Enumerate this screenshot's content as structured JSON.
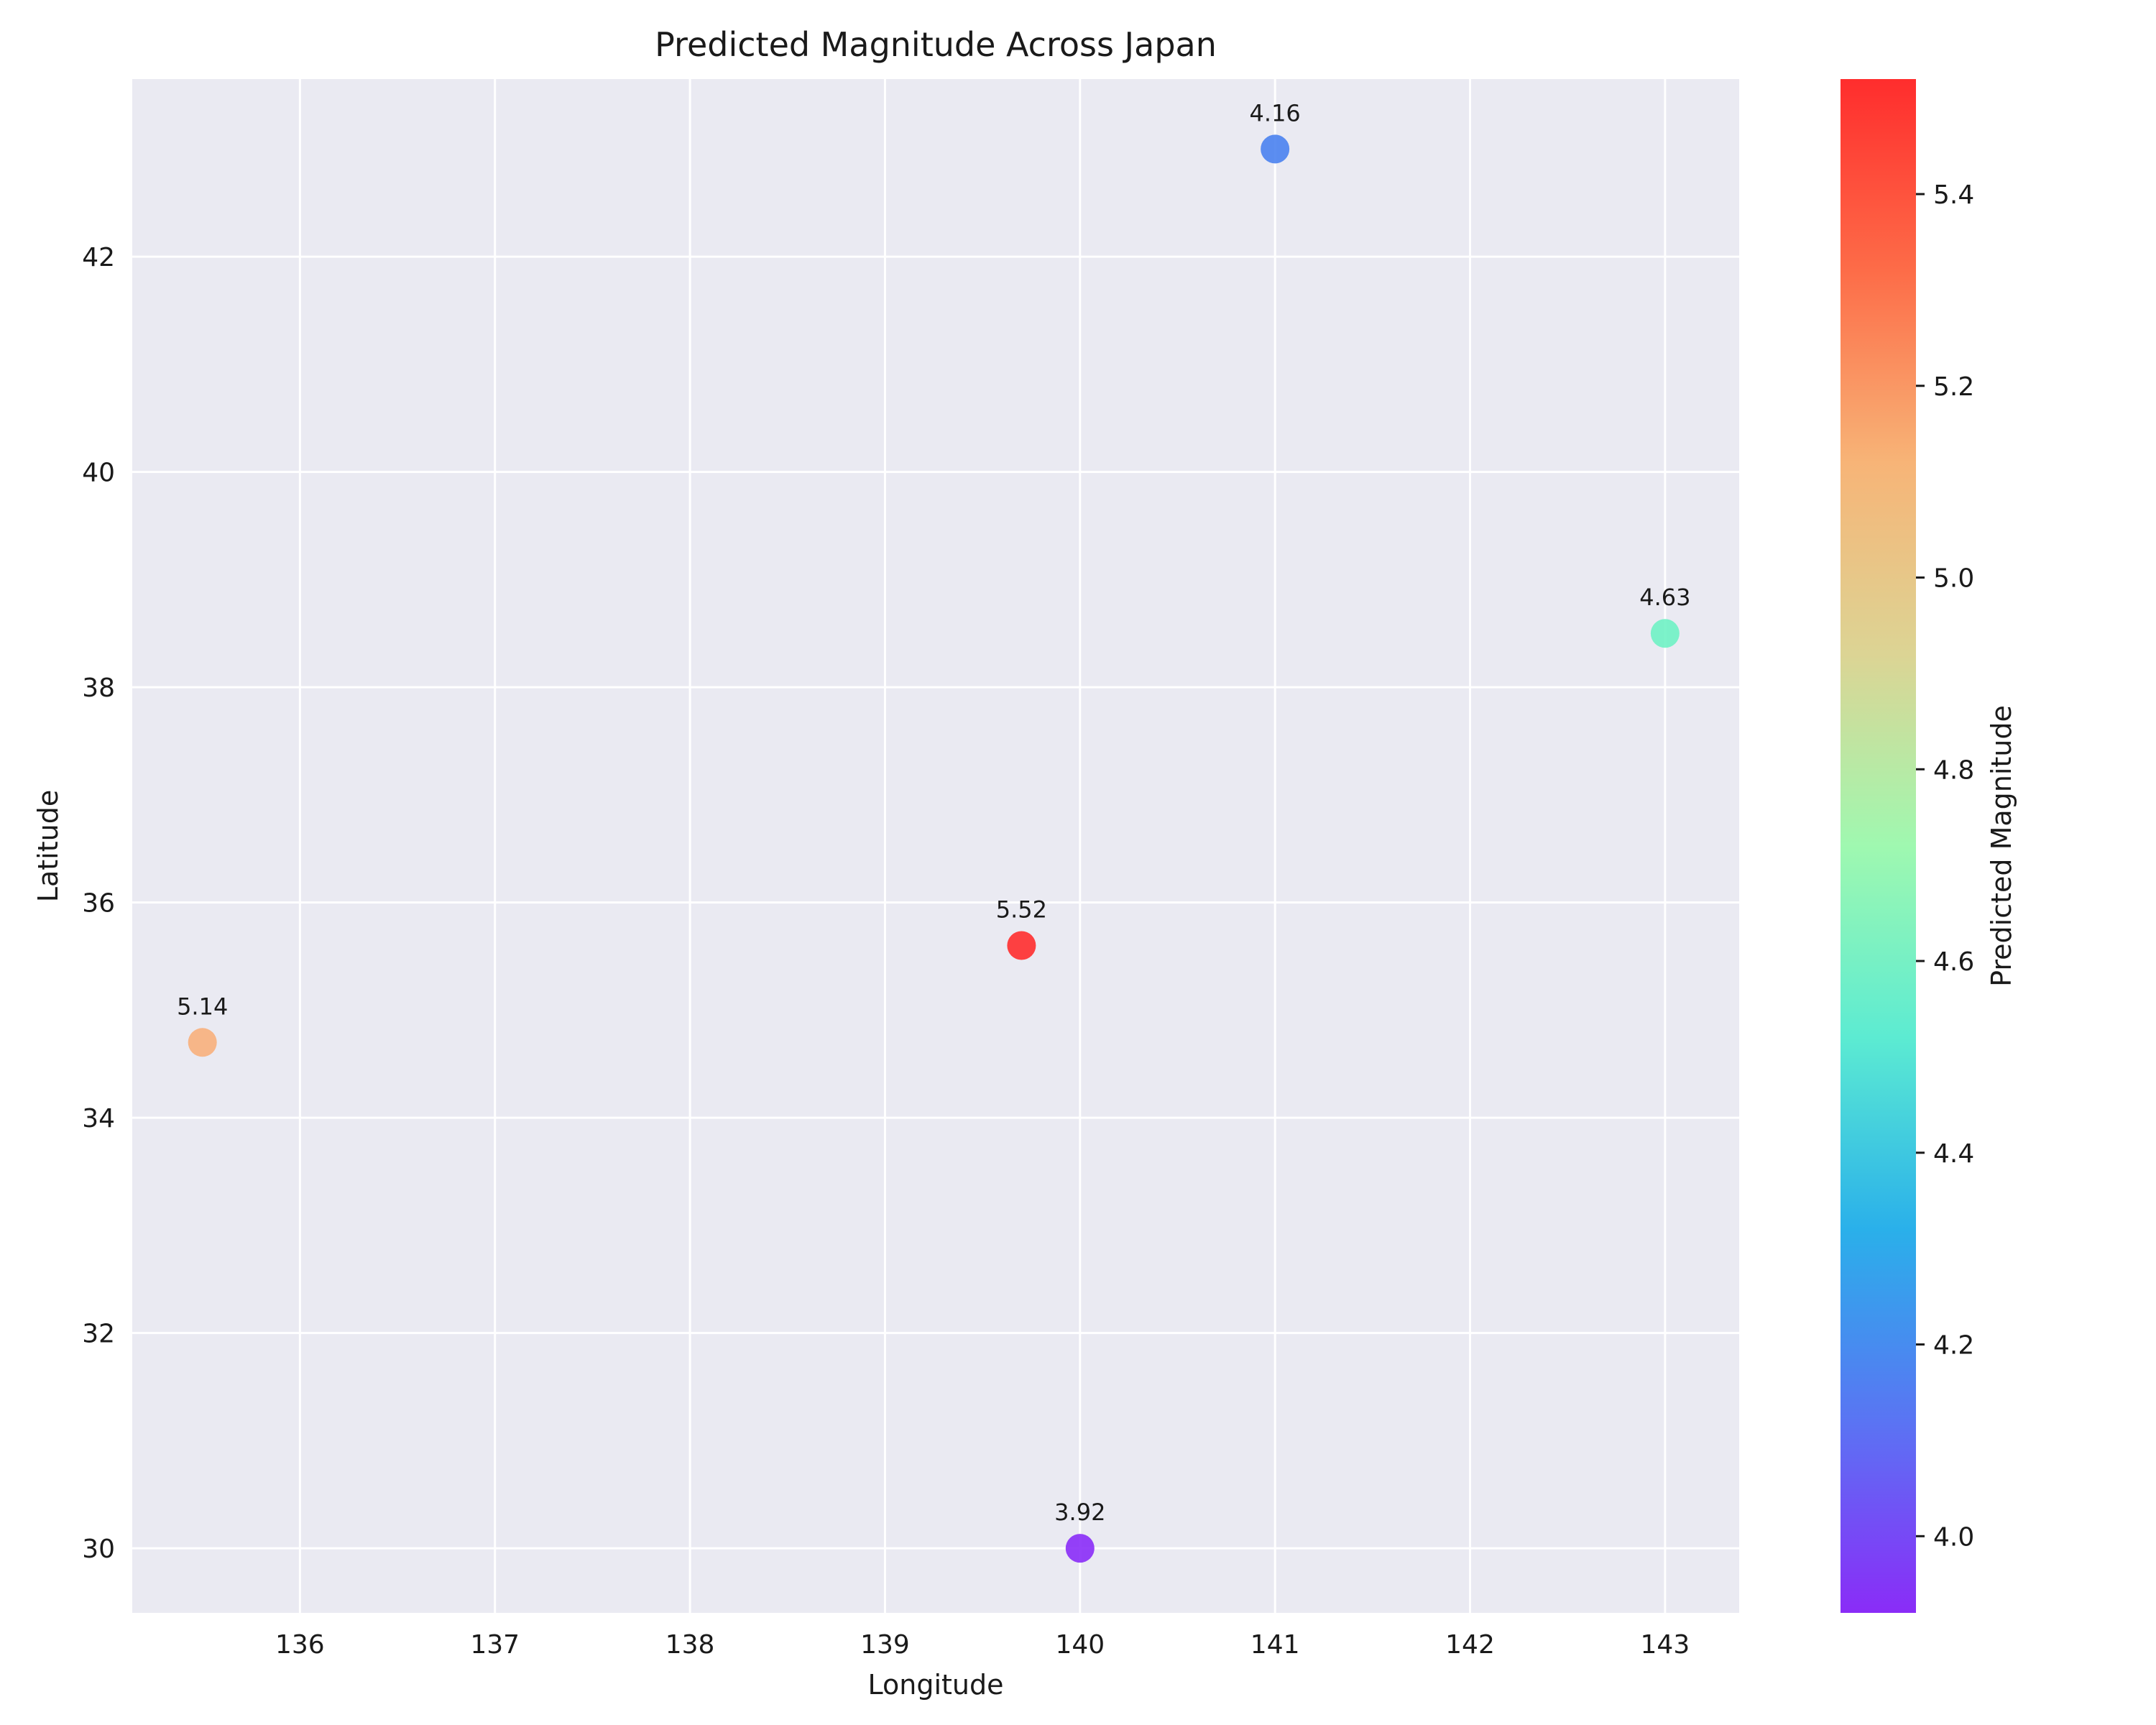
{
  "chart_data": {
    "type": "scatter",
    "title": "Predicted Magnitude Across Japan",
    "xlabel": "Longitude",
    "ylabel": "Latitude",
    "xlim": [
      135.14,
      143.38
    ],
    "ylim": [
      29.4,
      43.65
    ],
    "xticks": [
      136,
      137,
      138,
      139,
      140,
      141,
      142,
      143
    ],
    "yticks": [
      30,
      32,
      34,
      36,
      38,
      40,
      42
    ],
    "grid": true,
    "points": [
      {
        "x": 135.5,
        "y": 34.7,
        "value": 5.14,
        "label": "5.14",
        "color": "#f8b07c"
      },
      {
        "x": 139.7,
        "y": 35.6,
        "value": 5.52,
        "label": "5.52",
        "color": "#ff2d2d"
      },
      {
        "x": 140.0,
        "y": 30.0,
        "value": 3.92,
        "label": "3.92",
        "color": "#8a2cf7"
      },
      {
        "x": 141.0,
        "y": 43.0,
        "value": 4.16,
        "label": "4.16",
        "color": "#4a82f0"
      },
      {
        "x": 143.0,
        "y": 38.5,
        "value": 4.63,
        "label": "4.63",
        "color": "#6ff2c4"
      }
    ],
    "colorbar": {
      "label": "Predicted Magnitude",
      "min": 3.92,
      "max": 5.52,
      "ticks": [
        4.0,
        4.2,
        4.4,
        4.6,
        4.8,
        5.0,
        5.2,
        5.4
      ],
      "colormap": [
        "#8a2cf7",
        "#5a74f3",
        "#2ab0ea",
        "#5cebd2",
        "#9ff8b0",
        "#dcd494",
        "#f7b477",
        "#fd6c48",
        "#ff2d2d"
      ]
    }
  }
}
